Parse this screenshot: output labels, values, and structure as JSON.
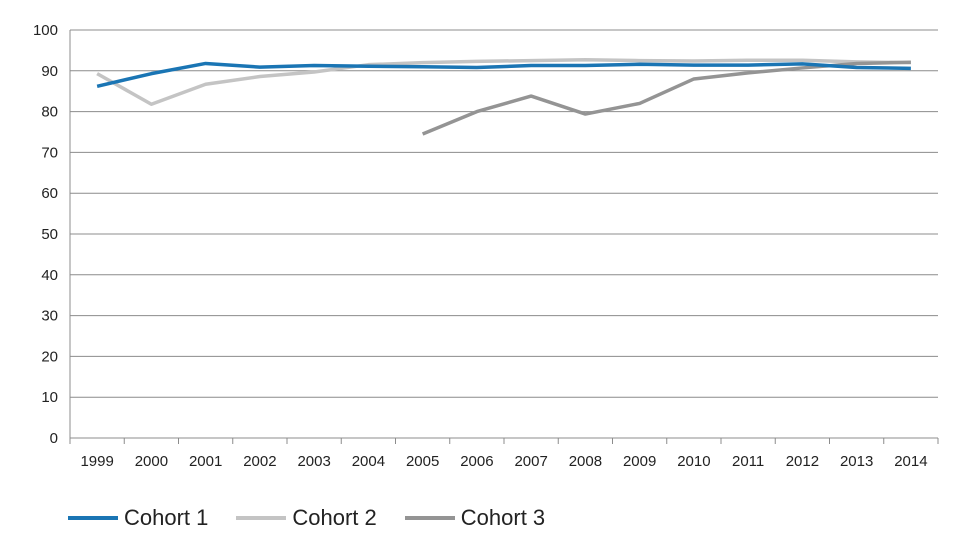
{
  "chart_data": {
    "type": "line",
    "title": "",
    "xlabel": "",
    "ylabel": "",
    "ylim": [
      0,
      100
    ],
    "yticks": [
      "0",
      "10",
      "20",
      "30",
      "40",
      "50",
      "60",
      "70",
      "80",
      "90",
      "100"
    ],
    "categories": [
      "1999",
      "2000",
      "2001",
      "2002",
      "2003",
      "2004",
      "2005",
      "2006",
      "2007",
      "2008",
      "2009",
      "2010",
      "2011",
      "2012",
      "2013",
      "2014"
    ],
    "grid": "horizontal",
    "legend_position": "bottom-left",
    "series": [
      {
        "name": "Cohort 1",
        "color": "#1a75b4",
        "values": [
          86.2,
          89.3,
          91.8,
          90.9,
          91.3,
          91.1,
          91.0,
          90.8,
          91.3,
          91.3,
          91.6,
          91.4,
          91.4,
          91.7,
          90.8,
          90.6
        ]
      },
      {
        "name": "Cohort 2",
        "color": "#c4c4c4",
        "values": [
          89.3,
          81.8,
          86.7,
          88.6,
          89.7,
          91.5,
          92.0,
          92.3,
          92.5,
          92.7,
          92.5,
          92.4,
          92.6,
          92.6,
          92.2,
          92.0
        ]
      },
      {
        "name": "Cohort 3",
        "color": "#949494",
        "values": [
          null,
          null,
          null,
          null,
          null,
          null,
          74.5,
          80.0,
          83.8,
          79.4,
          82.0,
          88.0,
          89.5,
          90.7,
          91.8,
          92.1
        ]
      }
    ]
  }
}
